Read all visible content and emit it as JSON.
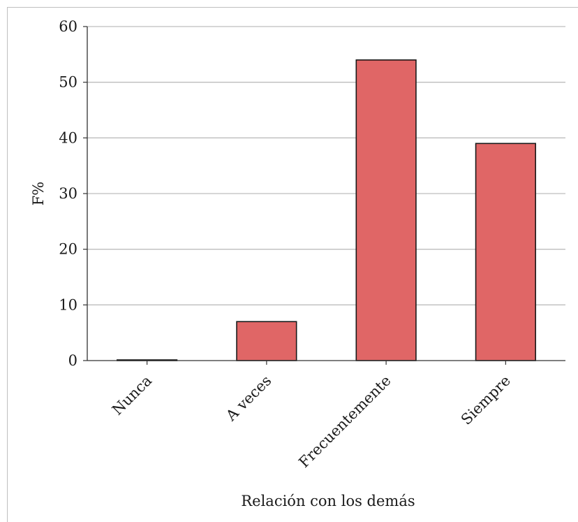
{
  "chart_data": {
    "type": "bar",
    "title": "",
    "xlabel": "Relación con los demás",
    "ylabel": "F%",
    "categories": [
      "Nunca",
      "A veces",
      "Frecuentemente",
      "Siempre"
    ],
    "values": [
      0,
      7,
      54,
      39
    ],
    "ylim": [
      0,
      60
    ],
    "yticks": [
      "0",
      "10",
      "20",
      "30",
      "40",
      "50",
      "60"
    ],
    "grid": true,
    "bar_color": "#e06666",
    "bar_edge_color": "#1a1a1a",
    "legend": "none"
  }
}
